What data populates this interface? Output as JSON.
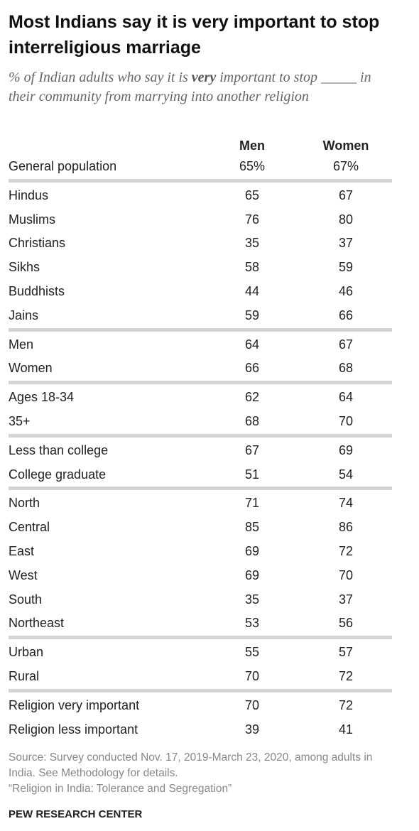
{
  "header": {
    "title": "Most Indians say it is very important to stop interreligious marriage",
    "subtitle": [
      "% of Indian adults who say it is ",
      "very",
      " important to stop ",
      "_____",
      " in their community from marrying into another religion"
    ]
  },
  "table": {
    "columns": [
      "Men",
      "Women"
    ],
    "groups": [
      [
        [
          "General population",
          "65%",
          "67%"
        ]
      ],
      [
        [
          "Hindus",
          65,
          67
        ],
        [
          "Muslims",
          76,
          80
        ],
        [
          "Christians",
          35,
          37
        ],
        [
          "Sikhs",
          58,
          59
        ],
        [
          "Buddhists",
          44,
          46
        ],
        [
          "Jains",
          59,
          66
        ]
      ],
      [
        [
          "Men",
          64,
          67
        ],
        [
          "Women",
          66,
          68
        ]
      ],
      [
        [
          "Ages 18-34",
          62,
          64
        ],
        [
          "35+",
          68,
          70
        ]
      ],
      [
        [
          "Less than college",
          67,
          69
        ],
        [
          "College graduate",
          51,
          54
        ]
      ],
      [
        [
          "North",
          71,
          74
        ],
        [
          "Central",
          85,
          86
        ],
        [
          "East",
          69,
          72
        ],
        [
          "West",
          69,
          70
        ],
        [
          "South",
          35,
          37
        ],
        [
          "Northeast",
          53,
          56
        ]
      ],
      [
        [
          "Urban",
          55,
          57
        ],
        [
          "Rural",
          70,
          72
        ]
      ],
      [
        [
          "Religion very important",
          70,
          72
        ],
        [
          "Religion less important",
          39,
          41
        ]
      ]
    ]
  },
  "footer": {
    "source": [
      "Source: Survey conducted Nov. 17, 2019-March 23, 2020, among adults in India. See Methodology for details.",
      "“Religion in India: Tolerance and Segregation”"
    ],
    "brand": "PEW RESEARCH CENTER"
  }
}
